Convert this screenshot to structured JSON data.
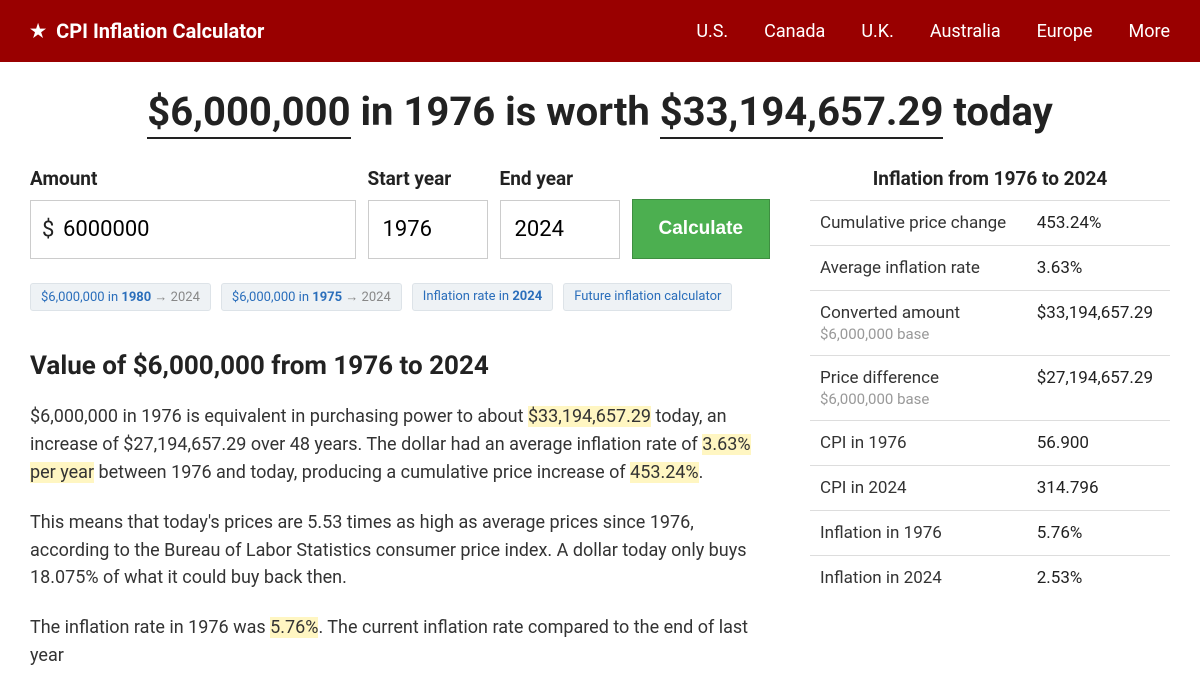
{
  "header": {
    "brand": "CPI Inflation Calculator",
    "nav": [
      "U.S.",
      "Canada",
      "U.K.",
      "Australia",
      "Europe",
      "More"
    ]
  },
  "headline": {
    "amount": "$6,000,000",
    "mid1": " in 1976 is worth ",
    "result": "$33,194,657.29",
    "mid2": " today"
  },
  "form": {
    "amount_label": "Amount",
    "amount_value": "6000000",
    "amount_prefix": "$",
    "start_label": "Start year",
    "start_value": "1976",
    "end_label": "End year",
    "end_value": "2024",
    "calc_label": "Calculate"
  },
  "chips": [
    {
      "pre": "$6,000,000 in ",
      "bold": "1980",
      "post": " → 2024"
    },
    {
      "pre": "$6,000,000 in ",
      "bold": "1975",
      "post": " → 2024"
    },
    {
      "pre": "Inflation rate in ",
      "bold": "2024",
      "post": ""
    },
    {
      "pre": "Future inflation calculator",
      "bold": "",
      "post": ""
    }
  ],
  "section_title": "Value of $6,000,000 from 1976 to 2024",
  "para1": {
    "t1": "$6,000,000 in 1976 is equivalent in purchasing power to about ",
    "h1": "$33,194,657.29",
    "t2": " today, an increase of $27,194,657.29 over 48 years. The dollar had an average inflation rate of ",
    "h2": "3.63% per year",
    "t3": " between 1976 and today, producing a cumulative price increase of ",
    "h3": "453.24%",
    "t4": "."
  },
  "para2": "This means that today's prices are 5.53 times as high as average prices since 1976, according to the Bureau of Labor Statistics consumer price index. A dollar today only buys 18.075% of what it could buy back then.",
  "para3": {
    "t1": "The inflation rate in 1976 was ",
    "h1": "5.76%",
    "t2": ". The current inflation rate compared to the end of last year"
  },
  "sidebar": {
    "title": "Inflation from 1976 to 2024",
    "rows": [
      {
        "label": "Cumulative price change",
        "sub": "",
        "value": "453.24%"
      },
      {
        "label": "Average inflation rate",
        "sub": "",
        "value": "3.63%"
      },
      {
        "label": "Converted amount",
        "sub": "$6,000,000 base",
        "value": "$33,194,657.29"
      },
      {
        "label": "Price difference",
        "sub": "$6,000,000 base",
        "value": "$27,194,657.29"
      },
      {
        "label": "CPI in 1976",
        "sub": "",
        "value": "56.900"
      },
      {
        "label": "CPI in 2024",
        "sub": "",
        "value": "314.796"
      },
      {
        "label": "Inflation in 1976",
        "sub": "",
        "value": "5.76%"
      },
      {
        "label": "Inflation in 2024",
        "sub": "",
        "value": "2.53%"
      }
    ]
  },
  "colors": {
    "header_bg": "#990000",
    "accent_green": "#4caf50",
    "highlight": "#fff6c2",
    "chip_bg": "#eef2f5",
    "link": "#2a6ebb"
  }
}
